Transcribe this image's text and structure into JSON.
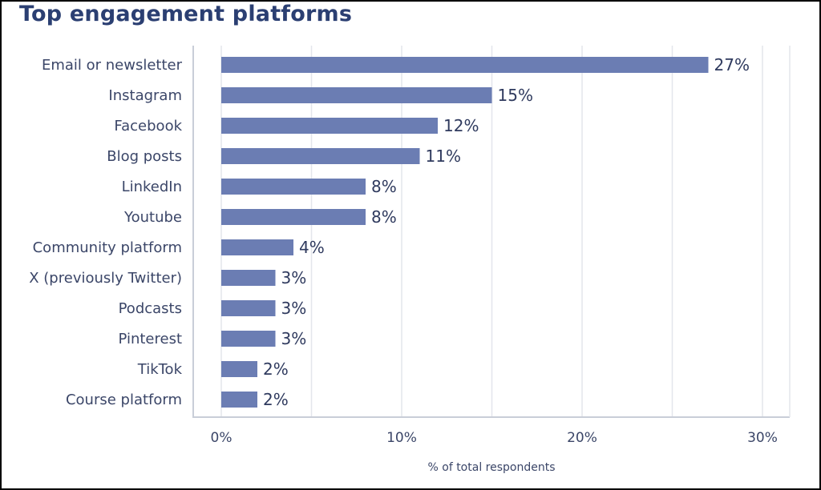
{
  "chart_data": {
    "type": "bar",
    "orientation": "horizontal",
    "title": "Top engagement platforms",
    "xlabel": "% of total respondents",
    "ylabel": "",
    "categories": [
      "Email or newsletter",
      "Instagram",
      "Facebook",
      "Blog posts",
      "LinkedIn",
      "Youtube",
      "Community platform",
      "X (previously Twitter)",
      "Podcasts",
      "Pinterest",
      "TikTok",
      "Course platform"
    ],
    "values": [
      27,
      15,
      12,
      11,
      8,
      8,
      4,
      3,
      3,
      3,
      2,
      2
    ],
    "value_labels": [
      "27%",
      "15%",
      "12%",
      "11%",
      "8%",
      "8%",
      "4%",
      "3%",
      "3%",
      "3%",
      "2%",
      "2%"
    ],
    "xlim": [
      0,
      30
    ],
    "xticks": [
      0,
      10,
      20,
      30
    ],
    "xtick_labels": [
      "0%",
      "10%",
      "20%",
      "30%"
    ],
    "grid": true,
    "grid_step": 5,
    "bar_color": "#6b7db3",
    "title_color": "#2b3f72"
  }
}
